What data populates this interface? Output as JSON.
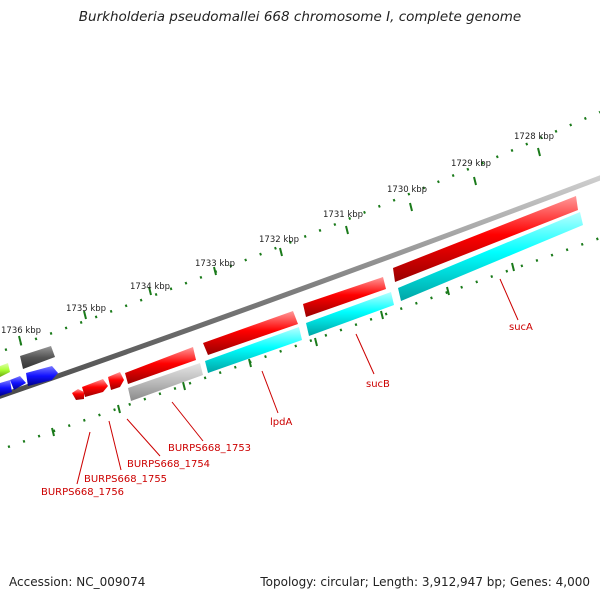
{
  "title": "Burkholderia pseudomallei 668 chromosome I, complete genome",
  "footer": {
    "accession": "Accession: NC_009074",
    "summary": "Topology: circular; Length: 3,912,947 bp; Genes: 4,000"
  },
  "ruler": {
    "ticks": [
      "1728 kbp",
      "1729 kbp",
      "1730 kbp",
      "1731 kbp",
      "1732 kbp",
      "1733 kbp",
      "1734 kbp",
      "1735 kbp",
      "1736 kbp"
    ]
  },
  "genes": {
    "labels": [
      "sucA",
      "sucB",
      "lpdA",
      "BURPS668_1753",
      "BURPS668_1754",
      "BURPS668_1755",
      "BURPS668_1756"
    ]
  },
  "colors": {
    "forward_gene": "#ff0000",
    "reverse_gene": "#00ffff",
    "pseudo_gene": "#bbbbbb",
    "other_gene": "#555555",
    "blue_gene": "#1010ff",
    "green_gene": "#aaff33",
    "backbone": "#808080",
    "tick": "#1a7a1a",
    "label": "#cc0000"
  }
}
